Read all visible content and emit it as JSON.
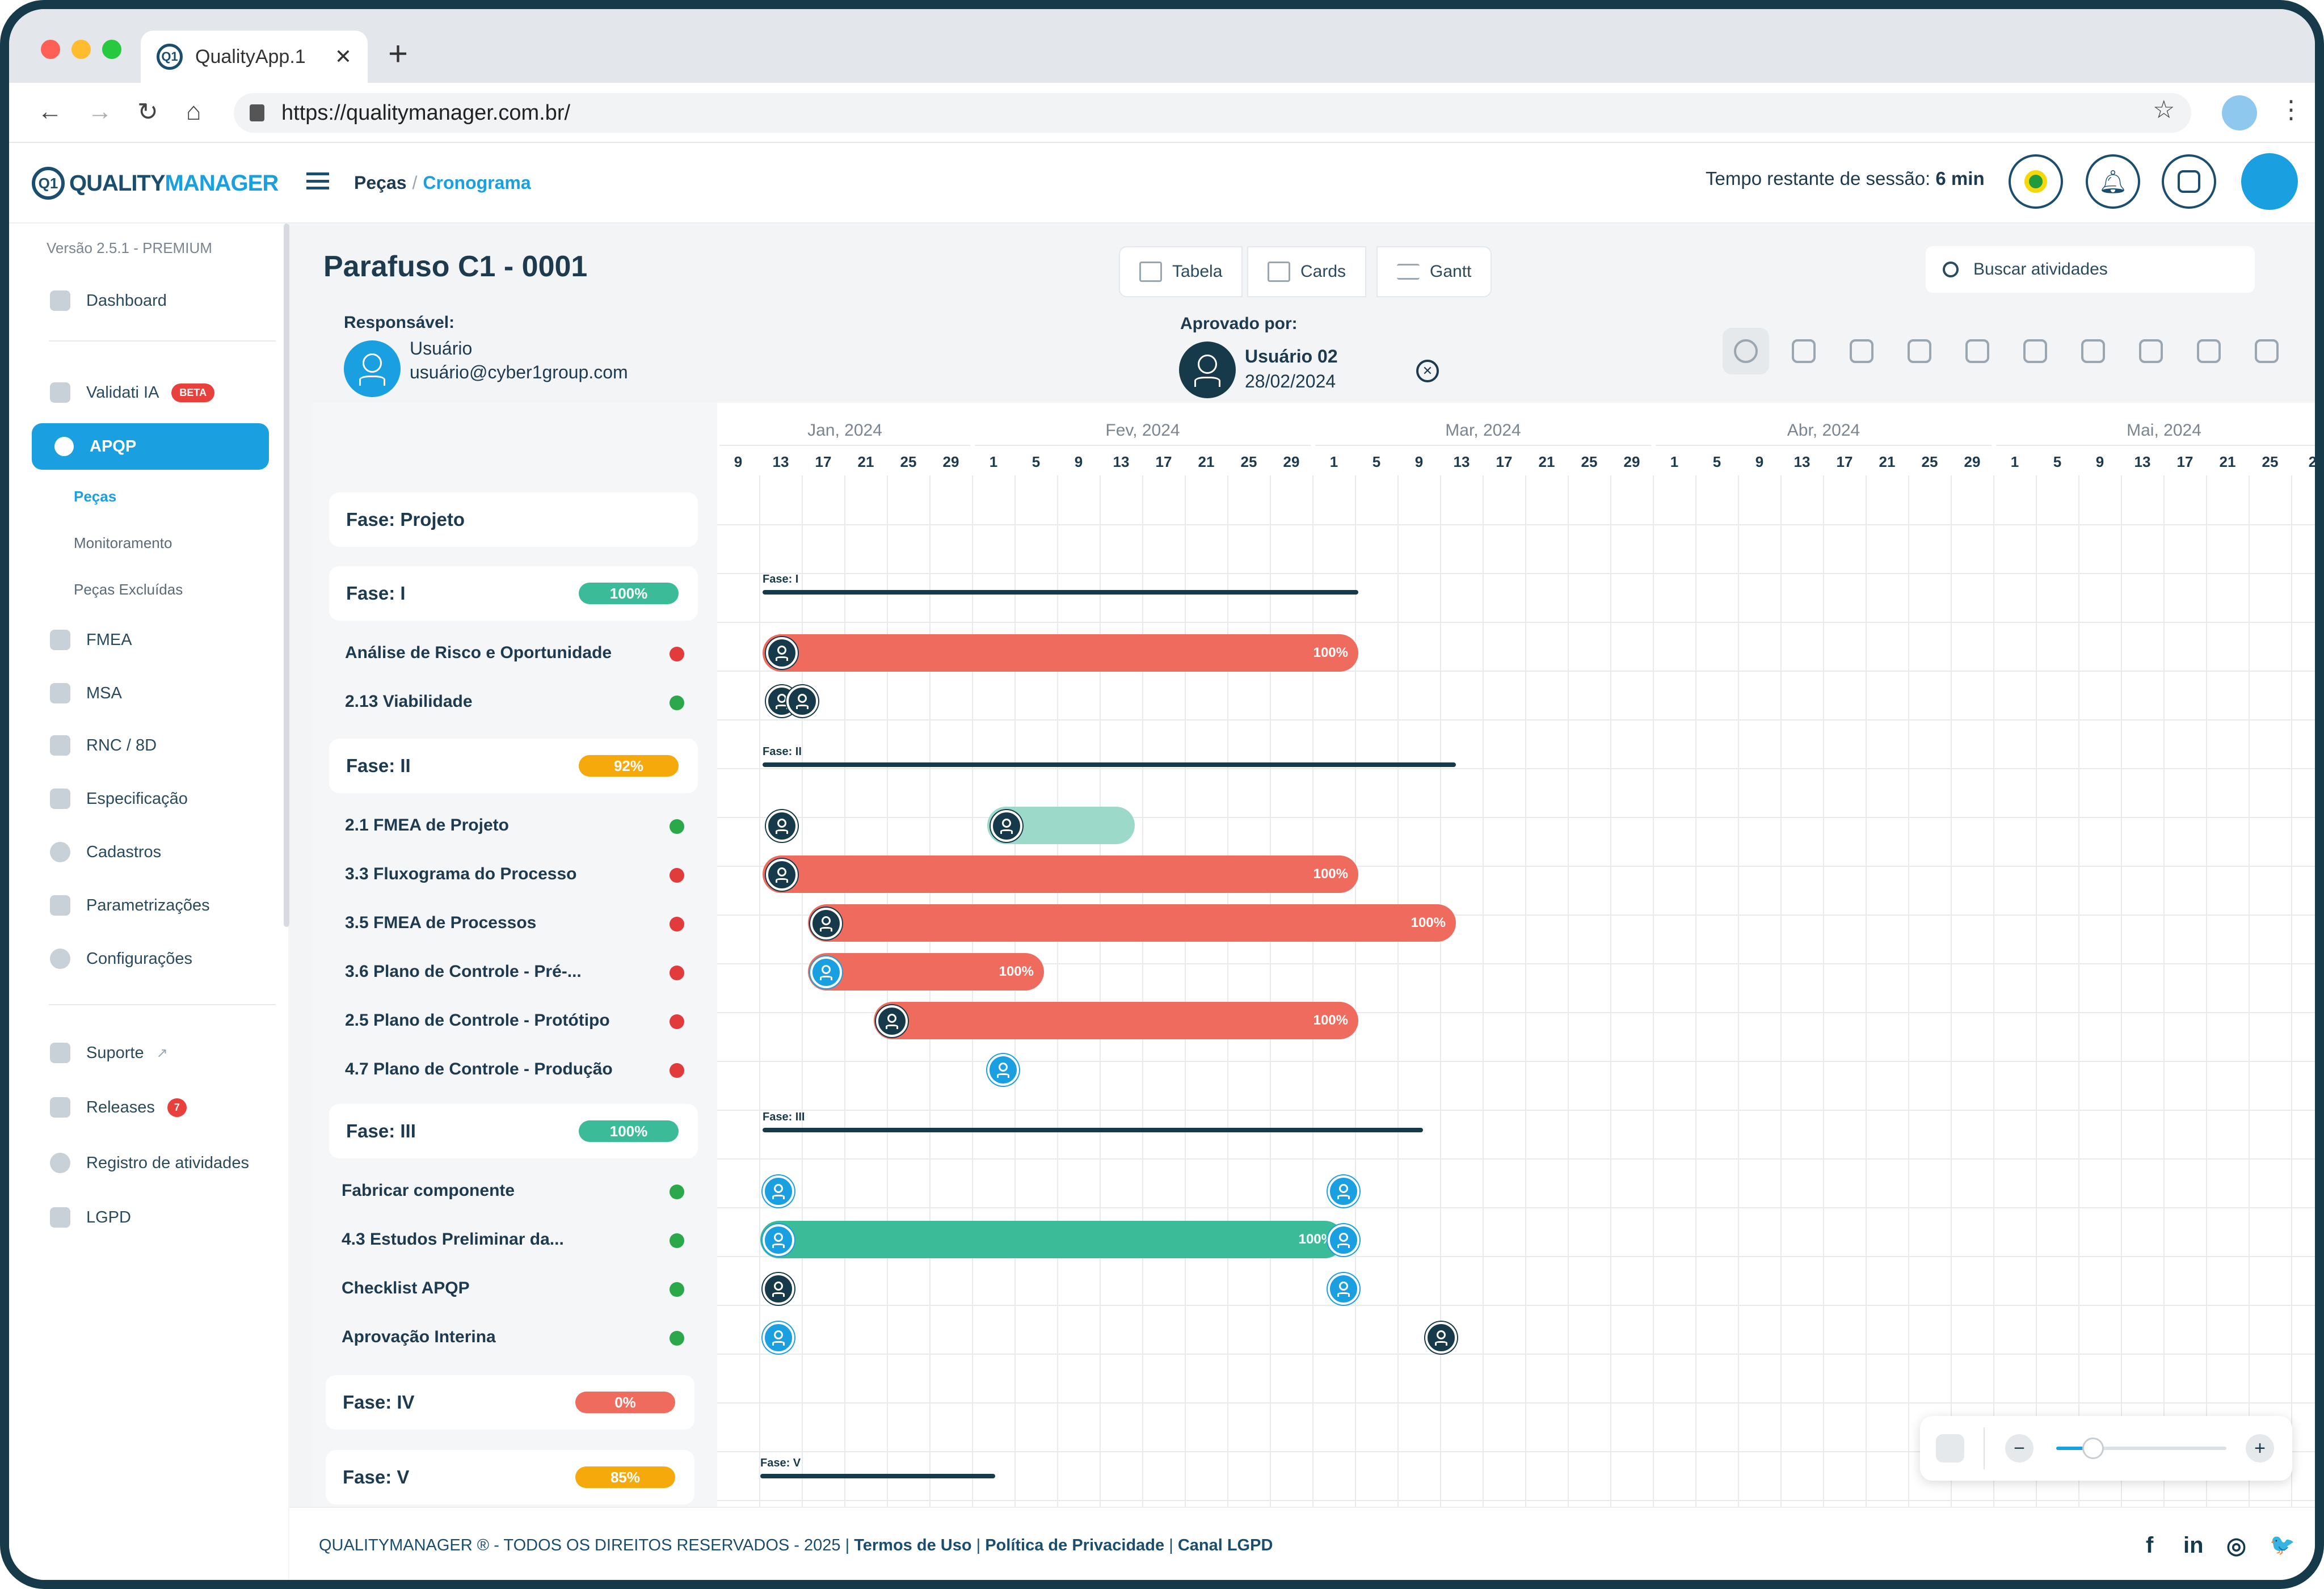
{
  "browser": {
    "tab_title": "QualityApp.1",
    "url": "https://qualitymanager.com.br/"
  },
  "header": {
    "logo_mark": "Q1",
    "logo_a": "QUALITY",
    "logo_b": "MANAGER",
    "crumb_a": "Peças",
    "crumb_sep": "/",
    "crumb_b": "Cronograma",
    "session_label": "Tempo restante de sessão:",
    "session_value": "6 min"
  },
  "sidebar": {
    "version": "Versão 2.5.1 - PREMIUM",
    "items": [
      {
        "label": "Dashboard"
      },
      {
        "label": "Validati IA",
        "badge": "BETA"
      },
      {
        "label": "APQP"
      },
      {
        "label": "FMEA"
      },
      {
        "label": "MSA"
      },
      {
        "label": "RNC / 8D"
      },
      {
        "label": "Especificação"
      },
      {
        "label": "Cadastros"
      },
      {
        "label": "Parametrizações"
      },
      {
        "label": "Configurações"
      },
      {
        "label": "Suporte"
      },
      {
        "label": "Releases",
        "badge": "7"
      },
      {
        "label": "Registro de atividades"
      },
      {
        "label": "LGPD"
      }
    ],
    "subitems": [
      "Peças",
      "Monitoramento",
      "Peças Excluídas"
    ]
  },
  "main": {
    "title": "Parafuso C1 - 0001",
    "views": [
      "Tabela",
      "Cards",
      "Gantt"
    ],
    "search_placeholder": "Buscar atividades",
    "resp_label": "Responsável:",
    "resp_name": "Usuário",
    "resp_email": "usuário@cyber1group.com",
    "appr_label": "Aprovado por:",
    "appr_name": "Usuário 02",
    "appr_date": "28/02/2024"
  },
  "gantt": {
    "months": [
      "Jan, 2024",
      "Fev, 2024",
      "Mar, 2024",
      "Abr, 2024",
      "Mai, 2024"
    ],
    "days": [
      "9",
      "13",
      "17",
      "21",
      "25",
      "29",
      "1",
      "5",
      "9",
      "13",
      "17",
      "21",
      "25",
      "29",
      "1",
      "5",
      "9",
      "13",
      "17",
      "21",
      "25",
      "29",
      "1",
      "5",
      "9",
      "13",
      "17",
      "21",
      "25",
      "29",
      "1",
      "5",
      "9",
      "13",
      "17",
      "21",
      "25",
      "2"
    ],
    "project": "Fase: Projeto",
    "phases": [
      {
        "name": "Fase: I",
        "pct": "100%",
        "tag": "Fase: I"
      },
      {
        "name": "Fase: II",
        "pct": "92%",
        "tag": "Fase: II"
      },
      {
        "name": "Fase: III",
        "pct": "100%",
        "tag": "Fase: III"
      },
      {
        "name": "Fase: IV",
        "pct": "0%"
      },
      {
        "name": "Fase: V",
        "pct": "85%",
        "tag": "Fase: V"
      }
    ],
    "activities": [
      {
        "name": "Análise de Risco e Oportunidade",
        "pct": "100%"
      },
      {
        "name": "2.13 Viabilidade"
      },
      {
        "name": "2.1 FMEA de Projeto"
      },
      {
        "name": "3.3 Fluxograma do Processo",
        "pct": "100%"
      },
      {
        "name": "3.5 FMEA de Processos",
        "pct": "100%"
      },
      {
        "name": "3.6 Plano de Controle - Pré-...",
        "pct": "100%"
      },
      {
        "name": "2.5 Plano de Controle - Protótipo",
        "pct": "100%"
      },
      {
        "name": "4.7 Plano de Controle - Produção"
      },
      {
        "name": "Fabricar componente"
      },
      {
        "name": "4.3 Estudos Preliminar da...",
        "pct": "100%"
      },
      {
        "name": "Checklist APQP"
      },
      {
        "name": "Aprovação Interina"
      }
    ]
  },
  "footer": {
    "text": "QUALITYMANAGER ® - TODOS OS DIREITOS RESERVADOS - 2025 |",
    "terms": "Termos de Uso",
    "privacy": "Política de Privacidade",
    "lgpd": "Canal LGPD",
    "sep": "|"
  },
  "social": [
    "f",
    "in",
    "◎",
    "🐦"
  ],
  "colors": {
    "accent": "#1aa0e0",
    "dark": "#163a4a",
    "red": "#ee6b5e",
    "green": "#3bbb98",
    "teal_light": "#9dd9c9",
    "amber": "#f5a90a"
  }
}
